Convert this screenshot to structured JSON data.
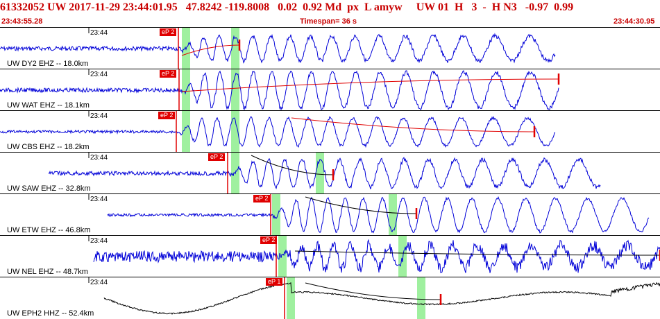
{
  "header": {
    "line": "61332052 UW 2017-11-29 23:44:01.95   47.8242 -119.8008   0.02  0.92 Md  px  L amyw     UW 01  H   3  -  H N3   -0.97  0.99",
    "start_time": "23:43:55.28",
    "timespan": "Timespan=  36 s",
    "end_time": "23:44:30.95"
  },
  "colors": {
    "header_text": "#c80000",
    "trace_blue": "#0000d8",
    "trace_black": "#000000",
    "pick_red": "#e00000",
    "window_green": "#9ff09f"
  },
  "traces": [
    {
      "label": "UW DY2 EHZ -- 18.0km",
      "tick": "23:44",
      "pick": "eP 2"
    },
    {
      "label": "UW WAT EHZ -- 18.1km",
      "tick": "23:44",
      "pick": "eP 2"
    },
    {
      "label": "UW CBS EHZ -- 18.2km",
      "tick": "23:44",
      "pick": "eP 2"
    },
    {
      "label": "UW SAW EHZ -- 32.8km",
      "tick": "23:44",
      "pick": "eP 2"
    },
    {
      "label": "UW ETW EHZ -- 46.8km",
      "tick": "23:44",
      "pick": "eP 2"
    },
    {
      "label": "UW NEL EHZ -- 48.7km",
      "tick": "23:44",
      "pick": "eP 2"
    },
    {
      "label": "UW EPH2 HHZ -- 52.4km",
      "tick": "23:44",
      "pick": "eP 1"
    }
  ]
}
